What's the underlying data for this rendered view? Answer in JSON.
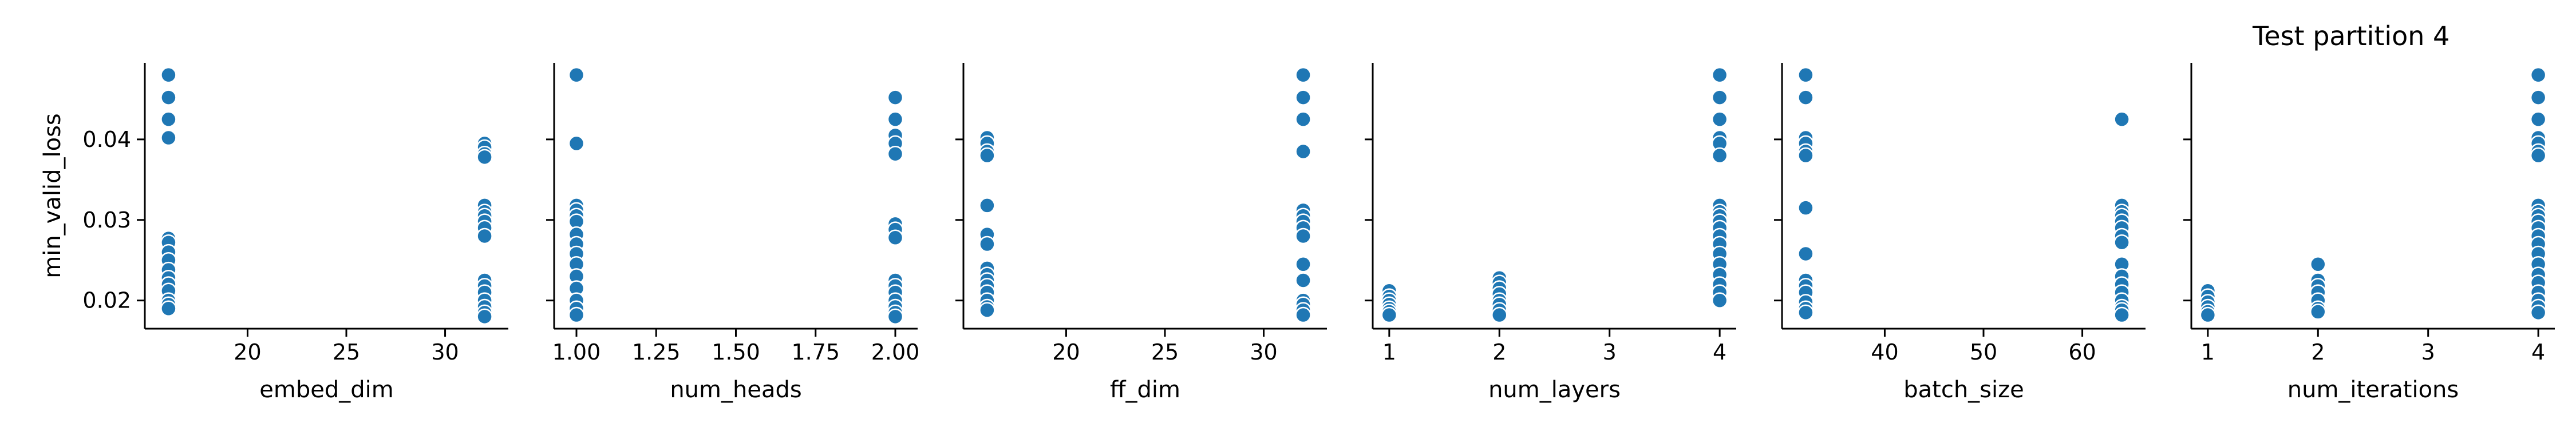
{
  "figure": {
    "title": "Test partition 4",
    "ylabel": "min_valid_loss",
    "point_color": "#1f77b4",
    "edge_color": "#ffffff"
  },
  "chart_data": [
    {
      "type": "scatter",
      "xlabel": "embed_dim",
      "ylabel": "min_valid_loss",
      "xlim": [
        14.8,
        33.2
      ],
      "ylim": [
        0.0165,
        0.0495
      ],
      "xticks": [
        20,
        25,
        30
      ],
      "xtick_labels": [
        "20",
        "25",
        "30"
      ],
      "yticks": [
        0.02,
        0.03,
        0.04
      ],
      "ytick_labels": [
        "0.02",
        "0.03",
        "0.04"
      ],
      "points": [
        [
          16,
          0.048
        ],
        [
          16,
          0.0452
        ],
        [
          16,
          0.0425
        ],
        [
          16,
          0.0402
        ],
        [
          16,
          0.0277
        ],
        [
          16,
          0.0272
        ],
        [
          16,
          0.026
        ],
        [
          16,
          0.025
        ],
        [
          16,
          0.0238
        ],
        [
          16,
          0.0228
        ],
        [
          16,
          0.022
        ],
        [
          16,
          0.0212
        ],
        [
          16,
          0.02
        ],
        [
          16,
          0.0195
        ],
        [
          16,
          0.019
        ],
        [
          32,
          0.0395
        ],
        [
          32,
          0.039
        ],
        [
          32,
          0.0382
        ],
        [
          32,
          0.0378
        ],
        [
          32,
          0.0318
        ],
        [
          32,
          0.031
        ],
        [
          32,
          0.0305
        ],
        [
          32,
          0.0298
        ],
        [
          32,
          0.029
        ],
        [
          32,
          0.028
        ],
        [
          32,
          0.0225
        ],
        [
          32,
          0.0218
        ],
        [
          32,
          0.021
        ],
        [
          32,
          0.02
        ],
        [
          32,
          0.0192
        ],
        [
          32,
          0.0185
        ],
        [
          32,
          0.018
        ]
      ]
    },
    {
      "type": "scatter",
      "xlabel": "num_heads",
      "xlim": [
        0.93,
        2.07
      ],
      "ylim": [
        0.0165,
        0.0495
      ],
      "xticks": [
        1.0,
        1.25,
        1.5,
        1.75,
        2.0
      ],
      "xtick_labels": [
        "1.00",
        "1.25",
        "1.50",
        "1.75",
        "2.00"
      ],
      "yticks": [
        0.02,
        0.03,
        0.04
      ],
      "points": [
        [
          1,
          0.048
        ],
        [
          1,
          0.0395
        ],
        [
          1,
          0.0318
        ],
        [
          1,
          0.0312
        ],
        [
          1,
          0.0305
        ],
        [
          1,
          0.0298
        ],
        [
          1,
          0.0282
        ],
        [
          1,
          0.027
        ],
        [
          1,
          0.0258
        ],
        [
          1,
          0.0245
        ],
        [
          1,
          0.023
        ],
        [
          1,
          0.0215
        ],
        [
          1,
          0.02
        ],
        [
          1,
          0.019
        ],
        [
          1,
          0.0182
        ],
        [
          2,
          0.0452
        ],
        [
          2,
          0.0425
        ],
        [
          2,
          0.0405
        ],
        [
          2,
          0.0395
        ],
        [
          2,
          0.0382
        ],
        [
          2,
          0.0295
        ],
        [
          2,
          0.0288
        ],
        [
          2,
          0.0278
        ],
        [
          2,
          0.0225
        ],
        [
          2,
          0.0218
        ],
        [
          2,
          0.021
        ],
        [
          2,
          0.02
        ],
        [
          2,
          0.0192
        ],
        [
          2,
          0.0185
        ],
        [
          2,
          0.018
        ]
      ]
    },
    {
      "type": "scatter",
      "xlabel": "ff_dim",
      "xlim": [
        14.8,
        33.2
      ],
      "ylim": [
        0.0165,
        0.0495
      ],
      "xticks": [
        20,
        25,
        30
      ],
      "xtick_labels": [
        "20",
        "25",
        "30"
      ],
      "yticks": [
        0.02,
        0.03,
        0.04
      ],
      "points": [
        [
          16,
          0.0402
        ],
        [
          16,
          0.0395
        ],
        [
          16,
          0.0385
        ],
        [
          16,
          0.038
        ],
        [
          16,
          0.0318
        ],
        [
          16,
          0.0282
        ],
        [
          16,
          0.027
        ],
        [
          16,
          0.024
        ],
        [
          16,
          0.0232
        ],
        [
          16,
          0.0225
        ],
        [
          16,
          0.0218
        ],
        [
          16,
          0.021
        ],
        [
          16,
          0.02
        ],
        [
          16,
          0.0192
        ],
        [
          16,
          0.0188
        ],
        [
          32,
          0.048
        ],
        [
          32,
          0.0452
        ],
        [
          32,
          0.0425
        ],
        [
          32,
          0.0385
        ],
        [
          32,
          0.0312
        ],
        [
          32,
          0.0305
        ],
        [
          32,
          0.0298
        ],
        [
          32,
          0.029
        ],
        [
          32,
          0.028
        ],
        [
          32,
          0.0245
        ],
        [
          32,
          0.0225
        ],
        [
          32,
          0.02
        ],
        [
          32,
          0.0195
        ],
        [
          32,
          0.0188
        ],
        [
          32,
          0.0182
        ]
      ]
    },
    {
      "type": "scatter",
      "xlabel": "num_layers",
      "xlim": [
        0.85,
        4.15
      ],
      "ylim": [
        0.0165,
        0.0495
      ],
      "xticks": [
        1,
        2,
        3,
        4
      ],
      "xtick_labels": [
        "1",
        "2",
        "3",
        "4"
      ],
      "yticks": [
        0.02,
        0.03,
        0.04
      ],
      "points": [
        [
          1,
          0.0212
        ],
        [
          1,
          0.0205
        ],
        [
          1,
          0.02
        ],
        [
          1,
          0.0195
        ],
        [
          1,
          0.019
        ],
        [
          1,
          0.0186
        ],
        [
          1,
          0.0182
        ],
        [
          2,
          0.0228
        ],
        [
          2,
          0.0222
        ],
        [
          2,
          0.0215
        ],
        [
          2,
          0.0208
        ],
        [
          2,
          0.02
        ],
        [
          2,
          0.0195
        ],
        [
          2,
          0.0188
        ],
        [
          2,
          0.0182
        ],
        [
          4,
          0.048
        ],
        [
          4,
          0.0452
        ],
        [
          4,
          0.0425
        ],
        [
          4,
          0.0402
        ],
        [
          4,
          0.0395
        ],
        [
          4,
          0.038
        ],
        [
          4,
          0.0318
        ],
        [
          4,
          0.031
        ],
        [
          4,
          0.0305
        ],
        [
          4,
          0.0298
        ],
        [
          4,
          0.029
        ],
        [
          4,
          0.028
        ],
        [
          4,
          0.027
        ],
        [
          4,
          0.0258
        ],
        [
          4,
          0.0245
        ],
        [
          4,
          0.0232
        ],
        [
          4,
          0.022
        ],
        [
          4,
          0.021
        ],
        [
          4,
          0.02
        ]
      ]
    },
    {
      "type": "scatter",
      "xlabel": "batch_size",
      "xlim": [
        29.6,
        66.4
      ],
      "ylim": [
        0.0165,
        0.0495
      ],
      "xticks": [
        40,
        50,
        60
      ],
      "xtick_labels": [
        "40",
        "50",
        "60"
      ],
      "yticks": [
        0.02,
        0.03,
        0.04
      ],
      "points": [
        [
          32,
          0.048
        ],
        [
          32,
          0.0452
        ],
        [
          32,
          0.0402
        ],
        [
          32,
          0.0395
        ],
        [
          32,
          0.0385
        ],
        [
          32,
          0.038
        ],
        [
          32,
          0.0315
        ],
        [
          32,
          0.0258
        ],
        [
          32,
          0.0225
        ],
        [
          32,
          0.0218
        ],
        [
          32,
          0.021
        ],
        [
          32,
          0.0198
        ],
        [
          32,
          0.019
        ],
        [
          32,
          0.0185
        ],
        [
          64,
          0.0425
        ],
        [
          64,
          0.0318
        ],
        [
          64,
          0.031
        ],
        [
          64,
          0.0305
        ],
        [
          64,
          0.0298
        ],
        [
          64,
          0.029
        ],
        [
          64,
          0.028
        ],
        [
          64,
          0.0272
        ],
        [
          64,
          0.0245
        ],
        [
          64,
          0.023
        ],
        [
          64,
          0.022
        ],
        [
          64,
          0.021
        ],
        [
          64,
          0.02
        ],
        [
          64,
          0.0192
        ],
        [
          64,
          0.0188
        ],
        [
          64,
          0.0182
        ]
      ]
    },
    {
      "type": "scatter",
      "xlabel": "num_iterations",
      "xlim": [
        0.85,
        4.15
      ],
      "ylim": [
        0.0165,
        0.0495
      ],
      "xticks": [
        1,
        2,
        3,
        4
      ],
      "xtick_labels": [
        "1",
        "2",
        "3",
        "4"
      ],
      "yticks": [
        0.02,
        0.03,
        0.04
      ],
      "points": [
        [
          1,
          0.0212
        ],
        [
          1,
          0.0205
        ],
        [
          1,
          0.0198
        ],
        [
          1,
          0.0192
        ],
        [
          1,
          0.0186
        ],
        [
          1,
          0.0182
        ],
        [
          2,
          0.0245
        ],
        [
          2,
          0.0225
        ],
        [
          2,
          0.0218
        ],
        [
          2,
          0.021
        ],
        [
          2,
          0.02
        ],
        [
          2,
          0.019
        ],
        [
          2,
          0.0186
        ],
        [
          4,
          0.048
        ],
        [
          4,
          0.0452
        ],
        [
          4,
          0.0425
        ],
        [
          4,
          0.0402
        ],
        [
          4,
          0.0395
        ],
        [
          4,
          0.0385
        ],
        [
          4,
          0.038
        ],
        [
          4,
          0.0318
        ],
        [
          4,
          0.031
        ],
        [
          4,
          0.0305
        ],
        [
          4,
          0.0298
        ],
        [
          4,
          0.029
        ],
        [
          4,
          0.028
        ],
        [
          4,
          0.027
        ],
        [
          4,
          0.0258
        ],
        [
          4,
          0.0245
        ],
        [
          4,
          0.0232
        ],
        [
          4,
          0.0222
        ],
        [
          4,
          0.021
        ],
        [
          4,
          0.02
        ],
        [
          4,
          0.0192
        ],
        [
          4,
          0.0185
        ]
      ]
    }
  ]
}
